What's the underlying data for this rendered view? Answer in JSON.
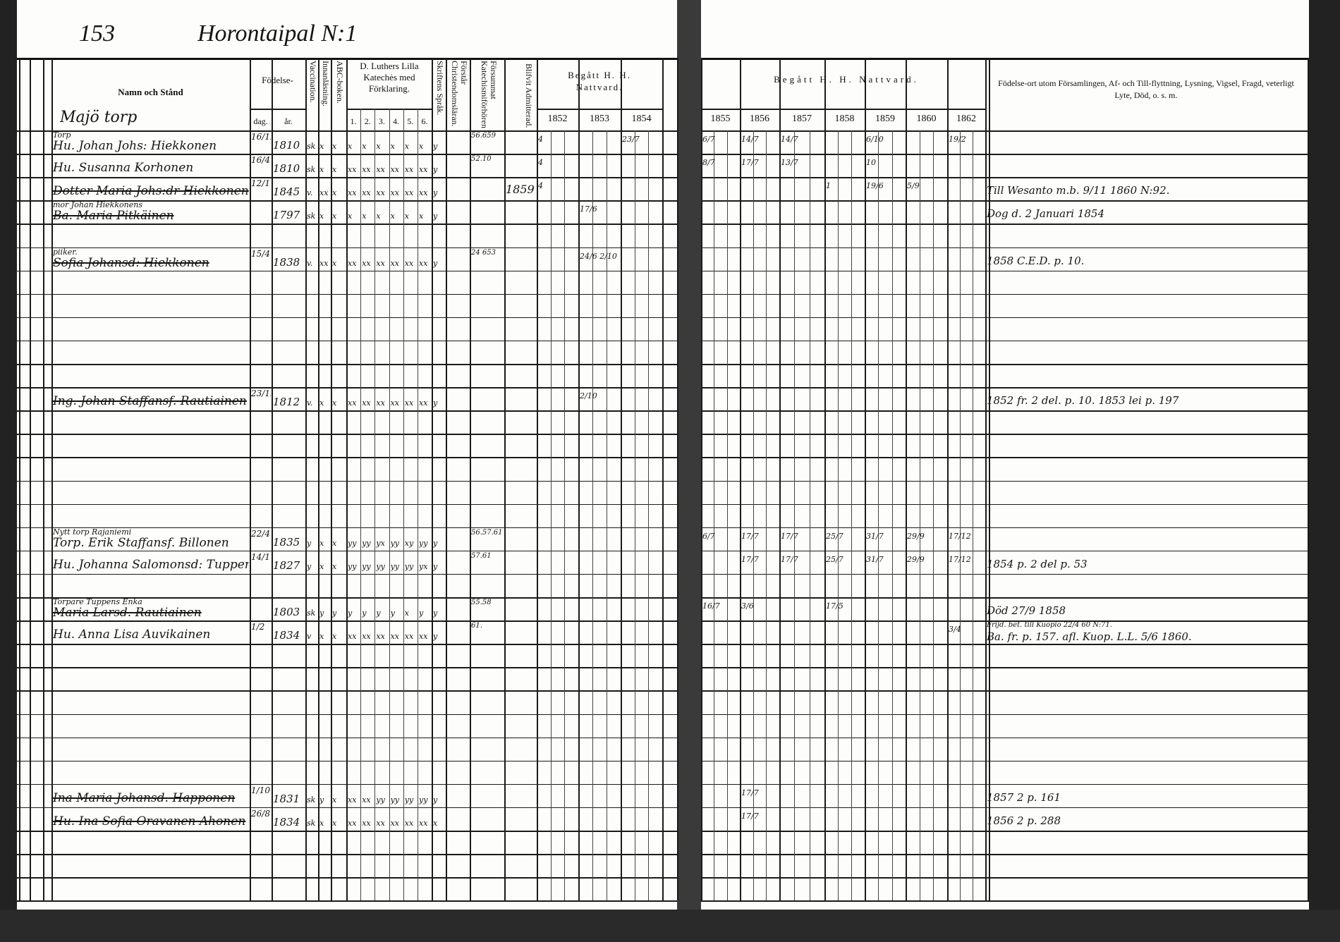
{
  "page": {
    "number": "153",
    "title": "Horontaipal N:1",
    "place": "Majö torp"
  },
  "headers": {
    "name": "Namn och Stånd",
    "birth": "Födelse-",
    "birth_day": "dag.",
    "birth_year": "år.",
    "vaccination": "Vaccination.",
    "reading": "Innanläsning.",
    "abc": "ABC-boken.",
    "luther": "D. Luthers Lilla Katechės med Förklaring.",
    "luther_parts": [
      "1.",
      "2.",
      "3.",
      "4.",
      "5.",
      "6."
    ],
    "scripture": "Skriftens Språk.",
    "understands": "Förstår Christendomsläran.",
    "missed": "Försummat Katechismiförhören.",
    "admitted": "Blifvit Admitterad.",
    "communion_left": "Begått H. H. Nattvard.",
    "communion_right": "Begått H. H. Nattvard.",
    "years_left": [
      "1852",
      "1853",
      "1854"
    ],
    "years_right": [
      "1855",
      "1856",
      "1857",
      "1858",
      "1859",
      "1860",
      "1862"
    ],
    "remarks": "Födelse-ort utom Församlingen, Af- och Till-flyttning, Lysning, Vigsel, Fragd, veterligt Lyte, Död, o. s. m."
  },
  "rows": [
    {
      "note": "Torp",
      "name": "Hu. Johan Johs: Hiekkonen",
      "dag": "16/12",
      "ar": "1810",
      "marks": [
        "sk",
        "x",
        "x",
        "x",
        "x",
        "x",
        "x",
        "x",
        "x",
        "y"
      ],
      "missed": "56.659",
      "years": {
        "1852": "4",
        "1854": "23/7",
        "1855": "6/7",
        "1856": "14/7",
        "1857": "14/7",
        "1859": "6/10",
        "1862": "19/2"
      }
    },
    {
      "name": "Hu. Susanna Korhonen",
      "dag": "16/4",
      "ar": "1810",
      "marks": [
        "sk",
        "x",
        "x",
        "xx",
        "xx",
        "xx",
        "xx",
        "xx",
        "xx",
        "y"
      ],
      "missed": "52.10",
      "years": {
        "1852": "4",
        "1855": "8/7",
        "1856": "17/7",
        "1857": "13/7",
        "1859": "10"
      }
    },
    {
      "name": "Dotter Maria Johs:dr Hiekkonen",
      "struck": true,
      "dag": "12/1",
      "ar": "1845",
      "marks": [
        "v.",
        "xx",
        "x",
        "xx",
        "xx",
        "xx",
        "xx",
        "xx",
        "xx",
        "y"
      ],
      "admitted": "1859",
      "years": {
        "1852": "4",
        "1858": "1",
        "1859": "19/6",
        "1860": "5/9"
      },
      "remark": "Till Wesanto m.b. 9/11 1860 N:92."
    },
    {
      "note": "mor Johan Hiekkonens",
      "name": "Ba. Maria Pitkäinen",
      "struck": true,
      "ar": "1797",
      "marks": [
        "sk",
        "x",
        "x",
        "x",
        "x",
        "x",
        "x",
        "x",
        "x",
        "y"
      ],
      "years": {
        "1853": "17/6"
      },
      "remark": "Dog d. 2 Januari 1854"
    },
    {},
    {
      "note": "piiker.",
      "name": "Sofia Johansd: Hiekkonen",
      "struck": true,
      "dag": "15/4",
      "ar": "1838",
      "marks": [
        "v.",
        "xx",
        "x",
        "xx",
        "xx",
        "xx",
        "xx",
        "xx",
        "xx",
        "y"
      ],
      "missed": "24 653",
      "years": {
        "1853": "24/6 2/10"
      },
      "remark": "1858 C.E.D. p. 10."
    },
    {},
    {},
    {},
    {},
    {},
    {
      "name": "Ing. Johan Staffansf. Rautiainen",
      "struck": true,
      "dag": "23/12",
      "ar": "1812",
      "marks": [
        "v.",
        "x",
        "x",
        "xx",
        "xx",
        "xx",
        "xx",
        "xx",
        "xx",
        "y"
      ],
      "years": {
        "1853": "2/10"
      },
      "remark": "1852 fr. 2 del. p. 10. 1853 lei p. 197"
    },
    {},
    {},
    {},
    {},
    {},
    {
      "note": "Nytt torp Rajaniemi",
      "name": "Torp. Erik Staffansf. Billonen",
      "dag": "22/4",
      "ar": "1835",
      "marks": [
        "y",
        "x",
        "x",
        "yy",
        "yy",
        "yx",
        "yy",
        "xy",
        "yy",
        "y"
      ],
      "missed": "56.57.61",
      "years": {
        "1855": "6/7",
        "1856": "17/7",
        "1857": "17/7",
        "1858": "25/7",
        "1859": "31/7",
        "1860": "29/9",
        "1862": "17/12"
      }
    },
    {
      "name": "Hu. Johanna Salomonsd: Tuppen",
      "dag": "14/11",
      "ar": "1827",
      "marks": [
        "y",
        "x",
        "x",
        "yy",
        "yy",
        "yy",
        "yy",
        "yy",
        "yx",
        "y"
      ],
      "missed": "57.61",
      "years": {
        "1856": "17/7",
        "1857": "17/7",
        "1858": "25/7",
        "1859": "31/7",
        "1860": "29/9",
        "1862": "17/12"
      },
      "remark": "1854 p. 2 del p. 53"
    },
    {},
    {
      "note": "Torpare Tuppens Enka",
      "name": "Maria Larsd. Rautiainen",
      "struck": true,
      "ar": "1803",
      "marks": [
        "sk",
        "y",
        "y",
        "y",
        "y",
        "y",
        "y",
        "x",
        "y",
        "y"
      ],
      "missed": "55.58",
      "years": {
        "1855": "16/7",
        "1856": "3/6",
        "1858": "17/5"
      },
      "remark": "Död 27/9 1858"
    },
    {
      "name": "Hu. Anna Lisa Auvikainen",
      "dag": "1/2",
      "ar": "1834",
      "marks": [
        "v",
        "x",
        "x",
        "xx",
        "xx",
        "xx",
        "xx",
        "xx",
        "xx",
        "y"
      ],
      "missed": "61.",
      "years": {
        "1862": "3/4"
      },
      "remark_top": "Frijd. bet. till Kuopio 22/4 60 N:71.",
      "remark": "Ba. fr. p. 157. afl. Kuop. L.L. 5/6 1860."
    },
    {},
    {},
    {},
    {},
    {},
    {},
    {
      "name": "Ina Maria Johansd. Happonen",
      "struck": true,
      "dag": "1/10",
      "ar": "1831",
      "marks": [
        "sk",
        "y",
        "x",
        "xx",
        "xx",
        "yy",
        "yy",
        "yy",
        "yy",
        "y"
      ],
      "years": {
        "1856": "17/7"
      },
      "remark": "1857 2 p. 161"
    },
    {
      "name": "Hu. Ina Sofia Oravanen Ahonen",
      "struck": true,
      "dag": "26/8",
      "ar": "1834",
      "marks": [
        "sk",
        "x",
        "x",
        "xx",
        "xx",
        "xx",
        "xx",
        "xx",
        "xx",
        "x"
      ],
      "years": {
        "1856": "17/7"
      },
      "remark": "1856 2 p. 288"
    },
    {},
    {},
    {}
  ]
}
